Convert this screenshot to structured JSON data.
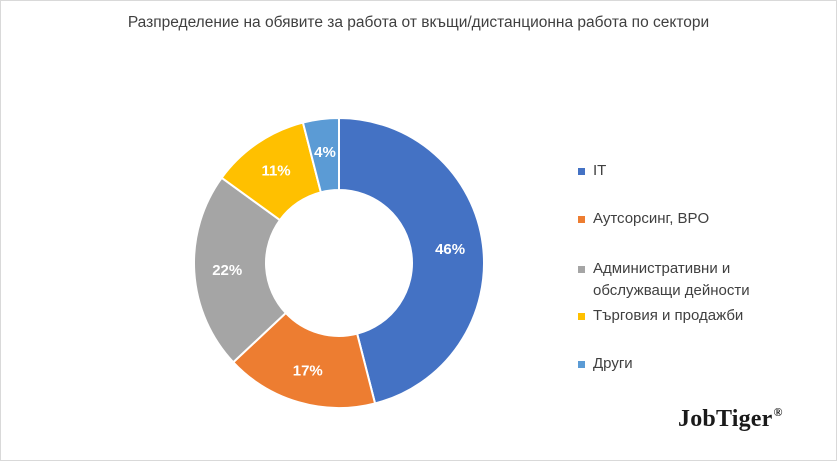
{
  "chart_data": {
    "type": "pie",
    "donut": true,
    "title": "Разпределение на обявите за работа от вкъщи/дистанционна работа по сектори",
    "legend_position": "right",
    "slices": [
      {
        "label_lines": [
          "IT"
        ],
        "value": 46,
        "data_label": "46%",
        "color": "#4472C4"
      },
      {
        "label_lines": [
          "Аутсорсинг, BPO"
        ],
        "value": 17,
        "data_label": "17%",
        "color": "#ED7D31"
      },
      {
        "label_lines": [
          "Административни и",
          "обслужващи дейности"
        ],
        "value": 22,
        "data_label": "22%",
        "color": "#A5A5A5"
      },
      {
        "label_lines": [
          "Търговия и продажби"
        ],
        "value": 11,
        "data_label": "11%",
        "color": "#FFC000"
      },
      {
        "label_lines": [
          "Други"
        ],
        "value": 4,
        "data_label": "4%",
        "color": "#5B9BD5"
      }
    ]
  },
  "logo": {
    "text": "JobTiger",
    "mark": "®"
  }
}
